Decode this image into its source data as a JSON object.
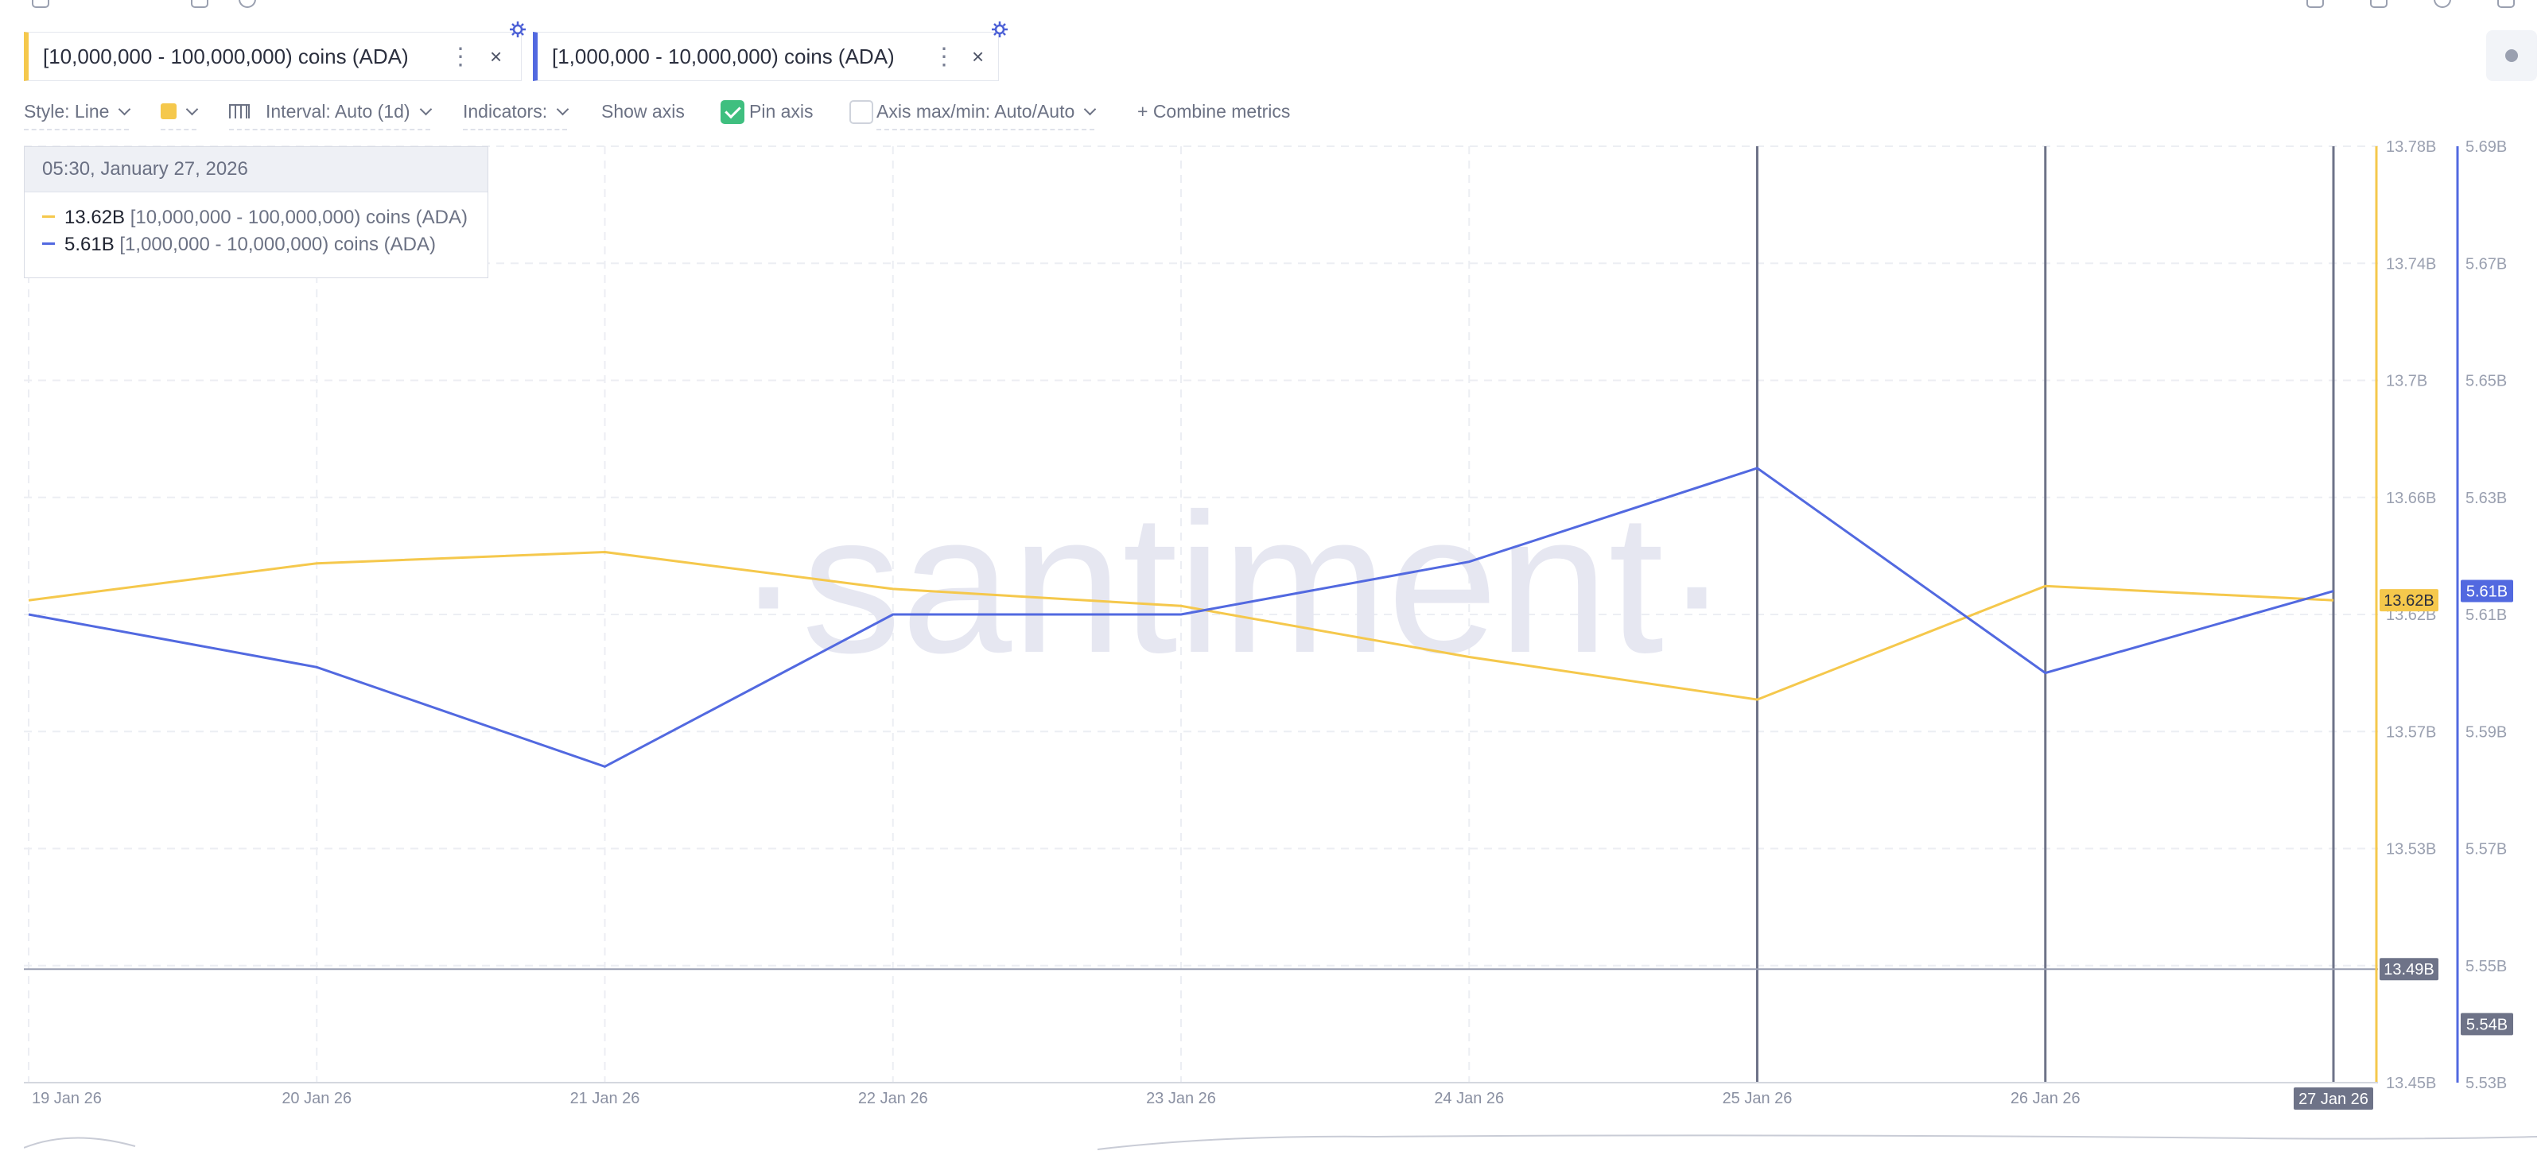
{
  "metrics": [
    {
      "label": "[10,000,000 - 100,000,000) coins (ADA)",
      "color": "#f5c84c",
      "more_icon": "⋮",
      "close_icon": "×"
    },
    {
      "label": "[1,000,000 - 10,000,000) coins (ADA)",
      "color": "#5269e0",
      "more_icon": "⋮",
      "close_icon": "×"
    }
  ],
  "toolbar": {
    "style_label": "Style: Line",
    "color_swatch": "#f5c84c",
    "interval_label": "Interval: Auto (1d)",
    "indicators_label": "Indicators:",
    "show_axis_label": "Show axis",
    "show_axis_checked": true,
    "pin_axis_label": "Pin axis",
    "pin_axis_checked": false,
    "axis_maxmin_label": "Axis max/min: Auto/Auto",
    "combine_label": "+ Combine metrics"
  },
  "tooltip": {
    "date": "05:30, January 27, 2026",
    "rows": [
      {
        "value": "13.62B",
        "name": "[10,000,000 - 100,000,000) coins (ADA)",
        "color": "#f5c84c"
      },
      {
        "value": "5.61B",
        "name": "[1,000,000 - 10,000,000) coins (ADA)",
        "color": "#5269e0"
      }
    ]
  },
  "watermark": "·santiment·",
  "chart_data": {
    "type": "line",
    "x": [
      "19 Jan 26",
      "20 Jan 26",
      "21 Jan 26",
      "22 Jan 26",
      "23 Jan 26",
      "24 Jan 26",
      "25 Jan 26",
      "26 Jan 26",
      "27 Jan 26"
    ],
    "series": [
      {
        "name": "[10,000,000 - 100,000,000) coins (ADA)",
        "color": "#f5c84c",
        "axis": "left",
        "values": [
          13.62,
          13.633,
          13.637,
          13.624,
          13.618,
          13.6,
          13.585,
          13.625,
          13.62
        ]
      },
      {
        "name": "[1,000,000 - 10,000,000) coins (ADA)",
        "color": "#5269e0",
        "axis": "right",
        "values": [
          5.61,
          5.601,
          5.584,
          5.61,
          5.61,
          5.619,
          5.635,
          5.6,
          5.614
        ]
      }
    ],
    "left_axis": {
      "min": 13.45,
      "max": 13.78,
      "ticks": [
        "13.78B",
        "13.74B",
        "13.7B",
        "13.66B",
        "13.62B",
        "13.57B",
        "13.53B",
        "13.49B",
        "13.45B"
      ]
    },
    "right_axis": {
      "min": 5.53,
      "max": 5.69,
      "ticks": [
        "5.69B",
        "5.67B",
        "5.65B",
        "5.63B",
        "5.61B",
        "5.59B",
        "5.57B",
        "5.55B",
        "5.53B"
      ]
    },
    "value_badges": {
      "left": "13.62B",
      "right": "5.61B"
    },
    "crosshair_badges": {
      "left": "13.49B",
      "right": "5.54B",
      "date": "27 Jan 26"
    },
    "crosshair": {
      "left_value": 13.49,
      "right_value": 5.54
    },
    "marker_lines_dates": [
      "25 Jan 26",
      "26 Jan 26",
      "27 Jan 26"
    ],
    "grid": true
  }
}
